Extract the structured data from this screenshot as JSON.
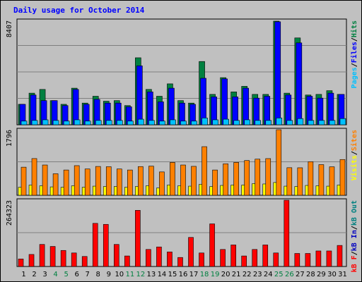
{
  "chart_data": {
    "type": "bar",
    "title": "Daily usage for October 2014",
    "days": [
      "1",
      "2",
      "3",
      "4",
      "5",
      "6",
      "7",
      "8",
      "9",
      "10",
      "11",
      "12",
      "13",
      "14",
      "15",
      "16",
      "17",
      "18",
      "19",
      "20",
      "21",
      "22",
      "23",
      "24",
      "25",
      "26",
      "27",
      "28",
      "29",
      "30",
      "31"
    ],
    "weekend_days": [
      "4",
      "5",
      "11",
      "12",
      "18",
      "19",
      "25",
      "26"
    ],
    "colors": {
      "hits": "#008040",
      "files": "#0000ff",
      "pages": "#00c0ff",
      "visits": "#ffff00",
      "sites": "#ff8000",
      "kb_in": "#0000c0",
      "kb_out": "#008080",
      "kb_f": "#ff0000",
      "weekday_label": "#000000",
      "weekend_label": "#008040",
      "title": "#0000ff",
      "background": "#c0c0c0",
      "panel": "#c0c0c0",
      "grid": "#7f7f7f"
    },
    "panels": [
      {
        "ymax_label": "8407",
        "ymax": 8407,
        "series_labels": [
          "Pages",
          "Files",
          "Hits"
        ],
        "series": [
          {
            "key": "hits",
            "values": [
              1650,
              2550,
              2850,
              1950,
              1650,
              2950,
              1750,
              2300,
              1900,
              1950,
              1550,
              5400,
              2850,
              2300,
              3300,
              1950,
              1750,
              5100,
              2450,
              3800,
              2650,
              3100,
              2450,
              2450,
              8350,
              2550,
              7000,
              2400,
              2450,
              2750,
              2450
            ]
          },
          {
            "key": "files",
            "values": [
              1650,
              2400,
              1950,
              1950,
              1550,
              2850,
              1650,
              2050,
              1750,
              1750,
              1450,
              4750,
              2650,
              1850,
              2950,
              1750,
              1650,
              3750,
              2250,
              3700,
              2250,
              2950,
              2150,
              2300,
              8300,
              2400,
              6600,
              2300,
              2150,
              2550,
              2450
            ]
          },
          {
            "key": "pages",
            "values": [
              300,
              350,
              400,
              350,
              300,
              400,
              300,
              350,
              350,
              350,
              300,
              450,
              350,
              300,
              400,
              300,
              300,
              550,
              400,
              450,
              350,
              400,
              350,
              350,
              550,
              350,
              500,
              350,
              350,
              350,
              500
            ]
          }
        ]
      },
      {
        "ymax_label": "1796",
        "ymax": 1796,
        "series_labels": [
          "Visits",
          "Sites",
          "Out",
          "In",
          "kB"
        ],
        "series": [
          {
            "key": "sites",
            "values": [
              770,
              1006,
              830,
              590,
              693,
              812,
              721,
              790,
              783,
              721,
              693,
              787,
              798,
              640,
              900,
              830,
              793,
              1332,
              693,
              863,
              900,
              952,
              990,
              1005,
              1796,
              756,
              754,
              920,
              840,
              780,
              980
            ]
          },
          {
            "key": "visits",
            "values": [
              220,
              280,
              260,
              230,
              220,
              260,
              220,
              250,
              240,
              240,
              220,
              240,
              260,
              200,
              280,
              260,
              250,
              300,
              240,
              270,
              280,
              280,
              320,
              310,
              350,
              250,
              240,
              270,
              260,
              250,
              280
            ]
          }
        ]
      },
      {
        "ymax_label": "264323",
        "ymax": 264323,
        "series_labels": [
          "kB F",
          "kB In",
          "kB Out"
        ],
        "series": [
          {
            "key": "kb_f",
            "values": [
              30000,
              48000,
              88000,
              80000,
              64000,
              54000,
              40000,
              172000,
              168000,
              88000,
              42000,
              224000,
              68000,
              78000,
              58000,
              36000,
              116000,
              54000,
              170000,
              68000,
              86000,
              42000,
              68000,
              86000,
              54000,
              264323,
              52000,
              52000,
              62000,
              62000,
              84000
            ]
          }
        ]
      }
    ],
    "grid": true,
    "legend_placement": "right-vertical"
  }
}
